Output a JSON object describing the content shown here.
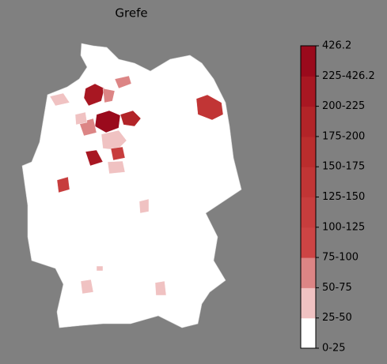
{
  "title": "Grefe",
  "colorbar": {
    "labels": [
      "0-25",
      "25-50",
      "50-75",
      "75-100",
      "100-125",
      "125-150",
      "150-175",
      "175-200",
      "200-225",
      "225-426.2",
      "426.2"
    ],
    "colors": [
      "#ffffff",
      "#f0c2c2",
      "#dc8585",
      "#cd4444",
      "#c73d3d",
      "#c13535",
      "#ba2d2d",
      "#b22428",
      "#a81722",
      "#9a0a1c"
    ]
  }
}
